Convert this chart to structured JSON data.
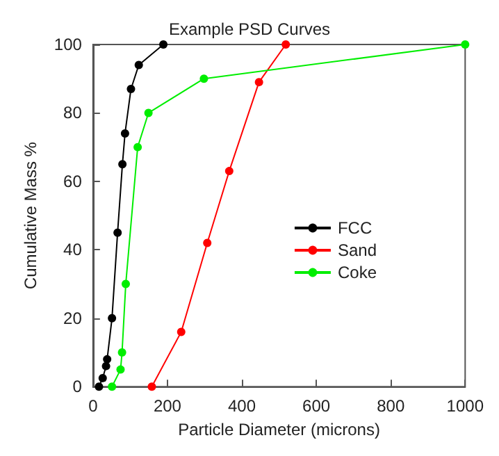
{
  "chart_data": {
    "type": "line",
    "title": "Example PSD Curves",
    "xlabel": "Particle Diameter (microns)",
    "ylabel": "Cumulative Mass %",
    "xlim": [
      0,
      1000
    ],
    "xticks": [
      0,
      200,
      400,
      600,
      800,
      1000
    ],
    "ylim": [
      0,
      100
    ],
    "yticks": [
      0,
      20,
      40,
      60,
      80,
      100
    ],
    "grid": false,
    "legend": "right",
    "marker": "circle",
    "series": [
      {
        "name": "FCC",
        "color": "#000000",
        "x": [
          16,
          26,
          35,
          38,
          51,
          66,
          79,
          86,
          102,
          123,
          189
        ],
        "values": [
          0,
          2.5,
          6,
          8,
          20,
          45,
          65,
          74,
          87,
          94,
          100
        ]
      },
      {
        "name": "Sand",
        "color": "#ff0000",
        "x": [
          158,
          237,
          307,
          366,
          446,
          518
        ],
        "values": [
          0,
          16,
          42,
          63,
          89,
          100
        ]
      },
      {
        "name": "Coke",
        "color": "#00ee00",
        "x": [
          51,
          74,
          78,
          88,
          120,
          149,
          298,
          1000
        ],
        "values": [
          0,
          5,
          10,
          30,
          70,
          80,
          90,
          100
        ]
      }
    ]
  }
}
